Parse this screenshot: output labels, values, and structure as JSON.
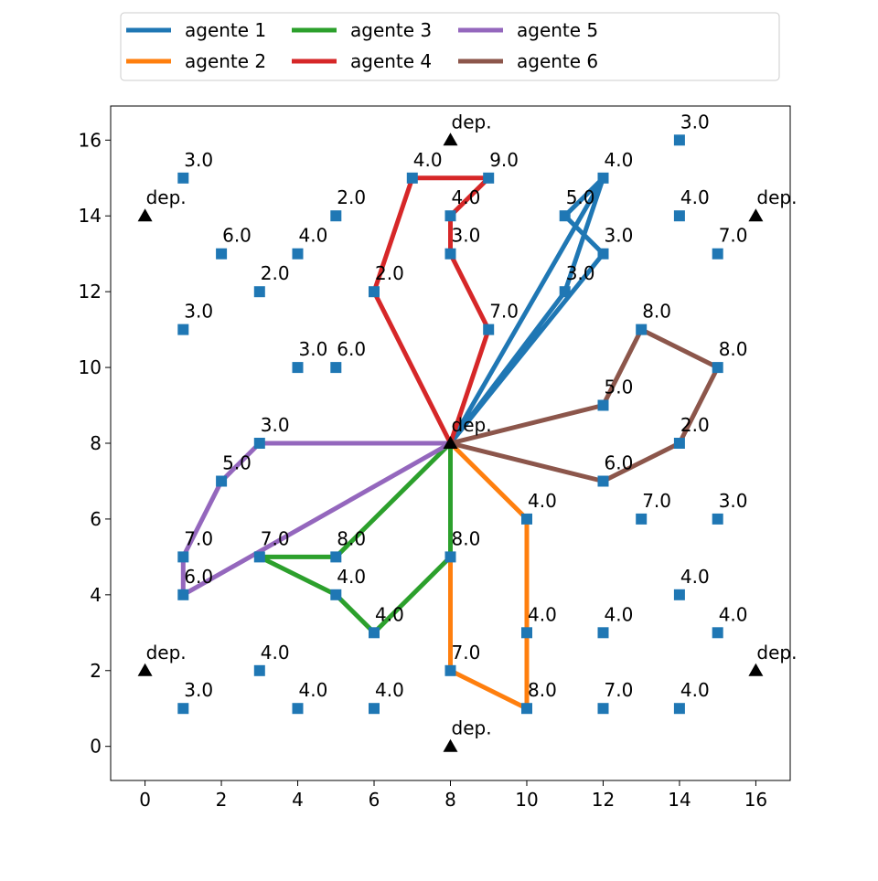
{
  "chart_data": {
    "type": "scatter",
    "title": "",
    "xlabel": "",
    "ylabel": "",
    "xlim": [
      -0.9,
      16.9
    ],
    "ylim": [
      -0.9,
      16.9
    ],
    "xticks": [
      0,
      2,
      4,
      6,
      8,
      10,
      12,
      14,
      16
    ],
    "yticks": [
      0,
      2,
      4,
      6,
      8,
      10,
      12,
      14,
      16
    ],
    "grid": false,
    "legend_position": "top-center",
    "depot_label": "dep.",
    "depots": [
      [
        8,
        8
      ],
      [
        8,
        16
      ],
      [
        0,
        14
      ],
      [
        16,
        14
      ],
      [
        0,
        2
      ],
      [
        16,
        2
      ],
      [
        8,
        0
      ]
    ],
    "customers": [
      {
        "x": 1,
        "y": 15,
        "label": "3.0"
      },
      {
        "x": 2,
        "y": 13,
        "label": "6.0"
      },
      {
        "x": 3,
        "y": 12,
        "label": "2.0"
      },
      {
        "x": 1,
        "y": 11,
        "label": "3.0"
      },
      {
        "x": 4,
        "y": 13,
        "label": "4.0"
      },
      {
        "x": 5,
        "y": 14,
        "label": "2.0"
      },
      {
        "x": 4,
        "y": 10,
        "label": "3.0"
      },
      {
        "x": 5,
        "y": 10,
        "label": "6.0"
      },
      {
        "x": 6,
        "y": 12,
        "label": "2.0"
      },
      {
        "x": 7,
        "y": 15,
        "label": "4.0"
      },
      {
        "x": 9,
        "y": 15,
        "label": "9.0"
      },
      {
        "x": 8,
        "y": 14,
        "label": "4.0"
      },
      {
        "x": 8,
        "y": 13,
        "label": "3.0"
      },
      {
        "x": 9,
        "y": 11,
        "label": "7.0"
      },
      {
        "x": 12,
        "y": 15,
        "label": "4.0"
      },
      {
        "x": 11,
        "y": 14,
        "label": "5.0"
      },
      {
        "x": 12,
        "y": 13,
        "label": "3.0"
      },
      {
        "x": 11,
        "y": 12,
        "label": "3.0"
      },
      {
        "x": 14,
        "y": 16,
        "label": "3.0"
      },
      {
        "x": 14,
        "y": 14,
        "label": "4.0"
      },
      {
        "x": 15,
        "y": 13,
        "label": "7.0"
      },
      {
        "x": 13,
        "y": 11,
        "label": "8.0"
      },
      {
        "x": 15,
        "y": 10,
        "label": "8.0"
      },
      {
        "x": 12,
        "y": 9,
        "label": "5.0"
      },
      {
        "x": 14,
        "y": 8,
        "label": "2.0"
      },
      {
        "x": 12,
        "y": 7,
        "label": "6.0"
      },
      {
        "x": 13,
        "y": 6,
        "label": "7.0"
      },
      {
        "x": 15,
        "y": 6,
        "label": "3.0"
      },
      {
        "x": 14,
        "y": 4,
        "label": "4.0"
      },
      {
        "x": 12,
        "y": 3,
        "label": "4.0"
      },
      {
        "x": 15,
        "y": 3,
        "label": "4.0"
      },
      {
        "x": 12,
        "y": 1,
        "label": "7.0"
      },
      {
        "x": 14,
        "y": 1,
        "label": "4.0"
      },
      {
        "x": 10,
        "y": 6,
        "label": "4.0"
      },
      {
        "x": 10,
        "y": 3,
        "label": "4.0"
      },
      {
        "x": 10,
        "y": 1,
        "label": "8.0"
      },
      {
        "x": 8,
        "y": 5,
        "label": "8.0"
      },
      {
        "x": 8,
        "y": 2,
        "label": "7.0"
      },
      {
        "x": 6,
        "y": 3,
        "label": "4.0"
      },
      {
        "x": 5,
        "y": 4,
        "label": "4.0"
      },
      {
        "x": 5,
        "y": 5,
        "label": "8.0"
      },
      {
        "x": 3,
        "y": 5,
        "label": "7.0"
      },
      {
        "x": 3,
        "y": 8,
        "label": "3.0"
      },
      {
        "x": 2,
        "y": 7,
        "label": "5.0"
      },
      {
        "x": 1,
        "y": 5,
        "label": "7.0"
      },
      {
        "x": 1,
        "y": 4,
        "label": "6.0"
      },
      {
        "x": 3,
        "y": 2,
        "label": "4.0"
      },
      {
        "x": 1,
        "y": 1,
        "label": "3.0"
      },
      {
        "x": 4,
        "y": 1,
        "label": "4.0"
      },
      {
        "x": 6,
        "y": 1,
        "label": "4.0"
      }
    ],
    "series": [
      {
        "name": "agente 1",
        "color": "#1f77b4",
        "route": [
          [
            8,
            8
          ],
          [
            12,
            15
          ],
          [
            11,
            14
          ],
          [
            12,
            13
          ],
          [
            8,
            8
          ],
          [
            11,
            12
          ],
          [
            12,
            15
          ]
        ]
      },
      {
        "name": "agente 2",
        "color": "#ff7f0e",
        "route": [
          [
            8,
            8
          ],
          [
            10,
            6
          ],
          [
            10,
            3
          ],
          [
            10,
            1
          ],
          [
            8,
            2
          ],
          [
            8,
            8
          ]
        ]
      },
      {
        "name": "agente 3",
        "color": "#2ca02c",
        "route": [
          [
            8,
            8
          ],
          [
            5,
            5
          ],
          [
            3,
            5
          ],
          [
            5,
            4
          ],
          [
            6,
            3
          ],
          [
            8,
            5
          ],
          [
            8,
            8
          ]
        ]
      },
      {
        "name": "agente 4",
        "color": "#d62728",
        "route": [
          [
            8,
            8
          ],
          [
            6,
            12
          ],
          [
            7,
            15
          ],
          [
            9,
            15
          ],
          [
            8,
            14
          ],
          [
            8,
            13
          ],
          [
            9,
            11
          ],
          [
            8,
            8
          ]
        ]
      },
      {
        "name": "agente 5",
        "color": "#9467bd",
        "route": [
          [
            8,
            8
          ],
          [
            3,
            8
          ],
          [
            2,
            7
          ],
          [
            1,
            5
          ],
          [
            1,
            4
          ],
          [
            8,
            8
          ]
        ]
      },
      {
        "name": "agente 6",
        "color": "#8c564b",
        "route": [
          [
            8,
            8
          ],
          [
            12,
            9
          ],
          [
            13,
            11
          ],
          [
            15,
            10
          ],
          [
            14,
            8
          ],
          [
            12,
            7
          ],
          [
            8,
            8
          ]
        ]
      }
    ],
    "marker_color": "#1f77b4",
    "depot_color": "#000000"
  }
}
